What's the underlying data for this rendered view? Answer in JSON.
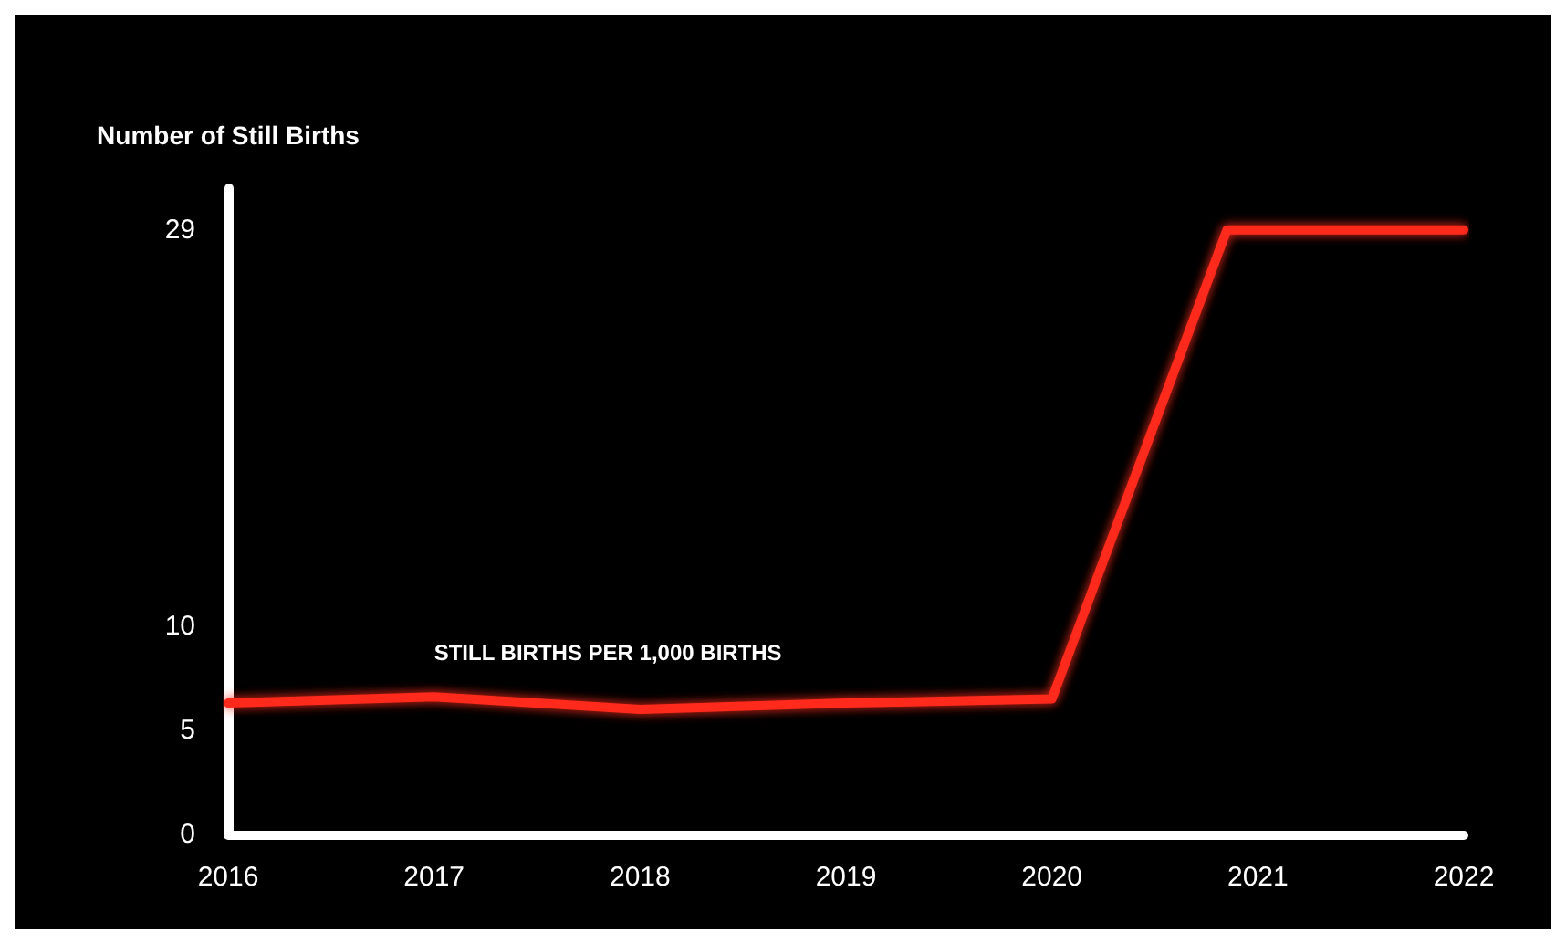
{
  "chart_data": {
    "type": "line",
    "ylabel": "Number of Still Births",
    "x": [
      2016,
      2017,
      2018,
      2019,
      2020,
      2020.85,
      2022
    ],
    "series": [
      {
        "name": "STILL BIRTHS PER 1,000 BIRTHS",
        "color": "#ff2a1f",
        "values": [
          6.3,
          6.6,
          6.0,
          6.3,
          6.5,
          29,
          29
        ]
      }
    ],
    "xlim": [
      2016,
      2022
    ],
    "xticks": [
      2016,
      2017,
      2018,
      2019,
      2020,
      2021,
      2022
    ],
    "ylim": [
      0,
      31
    ],
    "yticks": [
      0,
      5,
      10,
      29
    ],
    "grid": false,
    "legend": false,
    "marker": "none",
    "line_style": "solid"
  }
}
